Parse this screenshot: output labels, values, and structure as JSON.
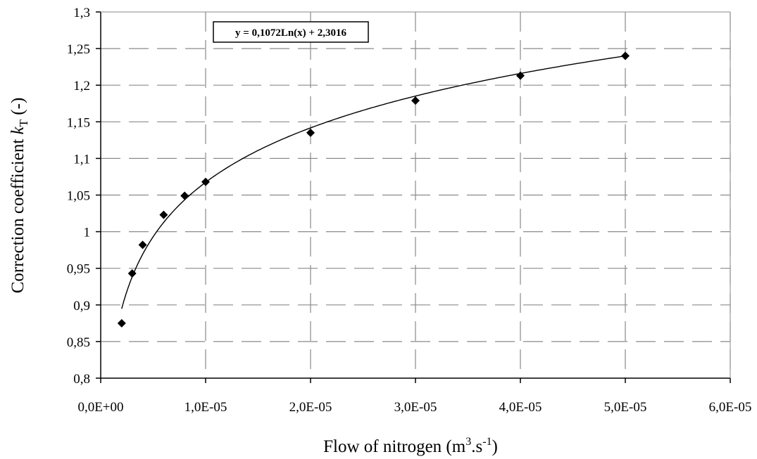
{
  "chart_data": {
    "type": "scatter",
    "xlabel": {
      "base": "Flow of nitrogen (m",
      "sup1": "3",
      "mid": ".s",
      "sup2": "-1",
      "end": ")"
    },
    "ylabel": {
      "base": "Correction coefficient ",
      "var": "k",
      "sub": "T",
      "end": " (-)"
    },
    "xlim": [
      0,
      6e-05
    ],
    "ylim": [
      0.8,
      1.3
    ],
    "x_ticks": [
      0,
      1e-05,
      2e-05,
      3e-05,
      4e-05,
      5e-05,
      6e-05
    ],
    "x_tick_labels": [
      "0,0E+00",
      "1,0E-05",
      "2,0E-05",
      "3,0E-05",
      "4,0E-05",
      "5,0E-05",
      "6,0E-05"
    ],
    "y_ticks": [
      0.8,
      0.85,
      0.9,
      0.95,
      1.0,
      1.05,
      1.1,
      1.15,
      1.2,
      1.25,
      1.3
    ],
    "y_tick_labels": [
      "0,8",
      "0,85",
      "0,9",
      "0,95",
      "1",
      "1,05",
      "1,1",
      "1,15",
      "1,2",
      "1,25",
      "1,3"
    ],
    "grid": "dashed",
    "series": [
      {
        "marker": "diamond",
        "color": "#000000",
        "x": [
          2e-06,
          3e-06,
          4e-06,
          6e-06,
          8e-06,
          1e-05,
          2e-05,
          3e-05,
          4e-05,
          5e-05
        ],
        "y": [
          0.875,
          0.943,
          0.982,
          1.023,
          1.049,
          1.068,
          1.135,
          1.179,
          1.213,
          1.24
        ]
      }
    ],
    "trendline": {
      "type": "logarithmic",
      "a": 0.1072,
      "b": 2.3016,
      "x_range": [
        2e-06,
        5e-05
      ],
      "equation_label": "y = 0,1072Ln(x) + 2,3016"
    }
  }
}
